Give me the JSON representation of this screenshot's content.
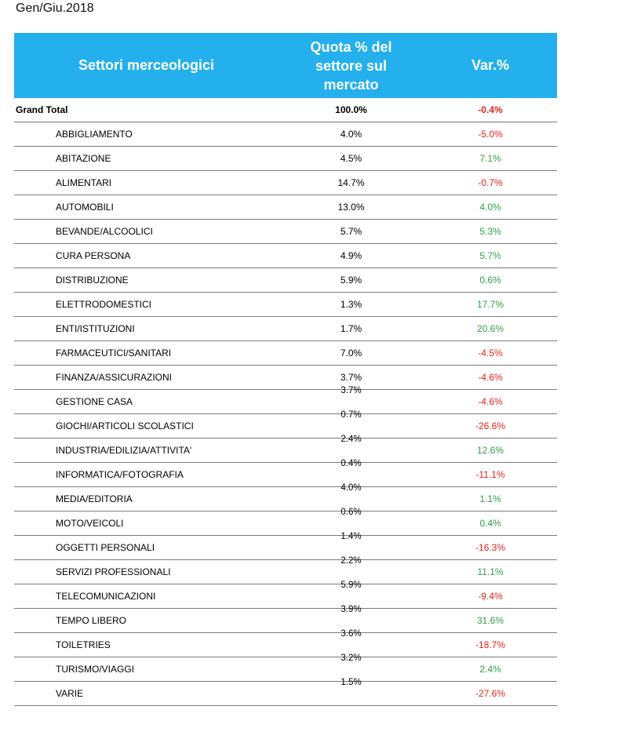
{
  "caption": "Gen/Giu.2018",
  "header": {
    "col1": "Settori merceologici",
    "col2": "Quota % del\nsettore sul\nmercato",
    "col3": "Var.%"
  },
  "colors": {
    "header_bg": "#23b0ec",
    "positive": "#2ea043",
    "negative": "#e0261b"
  },
  "total": {
    "name": "Grand Total",
    "share": "100.0%",
    "var": "-0.4%"
  },
  "rows": [
    {
      "name": "ABBIGLIAMENTO",
      "share": "4.0%",
      "var": "-5.0%"
    },
    {
      "name": "ABITAZIONE",
      "share": "4.5%",
      "var": "7.1%"
    },
    {
      "name": "ALIMENTARI",
      "share": "14.7%",
      "var": "-0.7%"
    },
    {
      "name": "AUTOMOBILI",
      "share": "13.0%",
      "var": "4.0%"
    },
    {
      "name": "BEVANDE/ALCOOLICI",
      "share": "5.7%",
      "var": "5.3%"
    },
    {
      "name": "CURA PERSONA",
      "share": "4.9%",
      "var": "5.7%"
    },
    {
      "name": "DISTRIBUZIONE",
      "share": "5.9%",
      "var": "0.6%"
    },
    {
      "name": "ELETTRODOMESTICI",
      "share": "1.3%",
      "var": "17.7%"
    },
    {
      "name": "ENTI/ISTITUZIONI",
      "share": "1.7%",
      "var": "20.6%"
    },
    {
      "name": "FARMACEUTICI/SANITARI",
      "share": "7.0%",
      "var": "-4.5%"
    },
    {
      "name": "FINANZA/ASSICURAZIONI",
      "share": "3.7%",
      "var": "-4.6%"
    },
    {
      "name": "GESTIONE CASA",
      "share": "3.7%",
      "var": "-4.6%"
    },
    {
      "name": "GIOCHI/ARTICOLI SCOLASTICI",
      "share": "0.7%",
      "var": "-26.6%"
    },
    {
      "name": "INDUSTRIA/EDILIZIA/ATTIVITA'",
      "share": "2.4%",
      "var": "12.6%"
    },
    {
      "name": "INFORMATICA/FOTOGRAFIA",
      "share": "0.4%",
      "var": "-11.1%"
    },
    {
      "name": "MEDIA/EDITORIA",
      "share": "4.0%",
      "var": "1.1%"
    },
    {
      "name": "MOTO/VEICOLI",
      "share": "0.6%",
      "var": "0.4%"
    },
    {
      "name": "OGGETTI PERSONALI",
      "share": "1.4%",
      "var": "-16.3%"
    },
    {
      "name": "SERVIZI PROFESSIONALI",
      "share": "2.2%",
      "var": "11.1%"
    },
    {
      "name": "TELECOMUNICAZIONI",
      "share": "5.9%",
      "var": "-9.4%"
    },
    {
      "name": "TEMPO LIBERO",
      "share": "3.9%",
      "var": "31.6%"
    },
    {
      "name": "TOILETRIES",
      "share": "3.6%",
      "var": "-18.7%"
    },
    {
      "name": "TURISMO/VIAGGI",
      "share": "3.2%",
      "var": "2.4%"
    },
    {
      "name": "VARIE",
      "share": "1.5%",
      "var": "-27.6%"
    }
  ]
}
